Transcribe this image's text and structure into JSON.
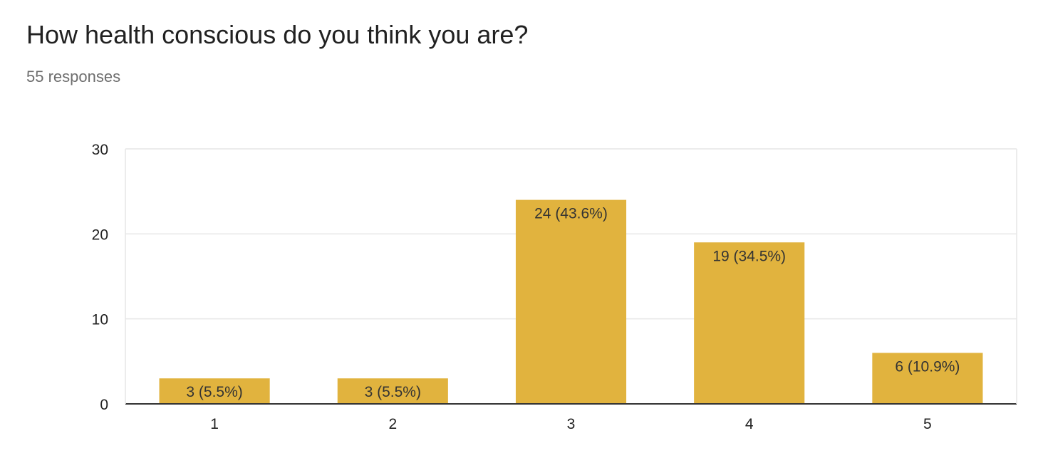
{
  "question": {
    "title": "How health conscious do you think you are?",
    "responses": "55 responses"
  },
  "chart_data": {
    "type": "bar",
    "categories": [
      "1",
      "2",
      "3",
      "4",
      "5"
    ],
    "values": [
      3,
      3,
      24,
      19,
      6
    ],
    "data_labels": [
      "3 (5.5%)",
      "3 (5.5%)",
      "24 (43.6%)",
      "19 (34.5%)",
      "6 (10.9%)"
    ],
    "ylim": [
      0,
      30
    ],
    "yticks": [
      0,
      10,
      20,
      30
    ],
    "grid": true,
    "legend": "none",
    "bar_color": "#e1b33e",
    "grid_color": "#e6e6e6",
    "axis_color": "#333333"
  }
}
